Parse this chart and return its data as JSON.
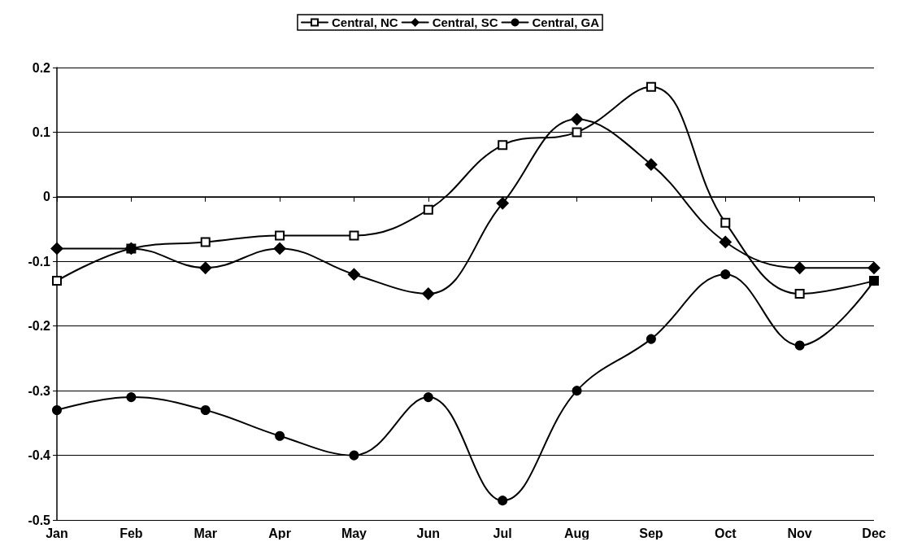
{
  "chart_data": {
    "type": "line",
    "categories": [
      "Jan",
      "Feb",
      "Mar",
      "Apr",
      "May",
      "Jun",
      "Jul",
      "Aug",
      "Sep",
      "Oct",
      "Nov",
      "Dec"
    ],
    "series": [
      {
        "name": "Central, NC",
        "color": "#000000",
        "marker": "square",
        "values": [
          -0.13,
          -0.08,
          -0.07,
          -0.06,
          -0.06,
          -0.02,
          0.08,
          0.1,
          0.17,
          -0.04,
          -0.15,
          -0.13
        ]
      },
      {
        "name": "Central, SC",
        "color": "#000000",
        "marker": "diamond",
        "values": [
          -0.08,
          -0.08,
          -0.11,
          -0.08,
          -0.12,
          -0.15,
          -0.01,
          0.12,
          0.05,
          -0.07,
          -0.11,
          -0.11
        ]
      },
      {
        "name": "Central, GA",
        "color": "#000000",
        "marker": "circle",
        "values": [
          -0.33,
          -0.31,
          -0.33,
          -0.37,
          -0.4,
          -0.31,
          -0.47,
          -0.3,
          -0.22,
          -0.12,
          -0.23,
          -0.13
        ]
      }
    ],
    "ylim": [
      -0.5,
      0.2
    ],
    "yticks": [
      -0.5,
      -0.4,
      -0.3,
      -0.2,
      -0.1,
      0,
      0.1,
      0.2
    ],
    "grid": "y",
    "legend": "top",
    "line_style": "solid"
  }
}
